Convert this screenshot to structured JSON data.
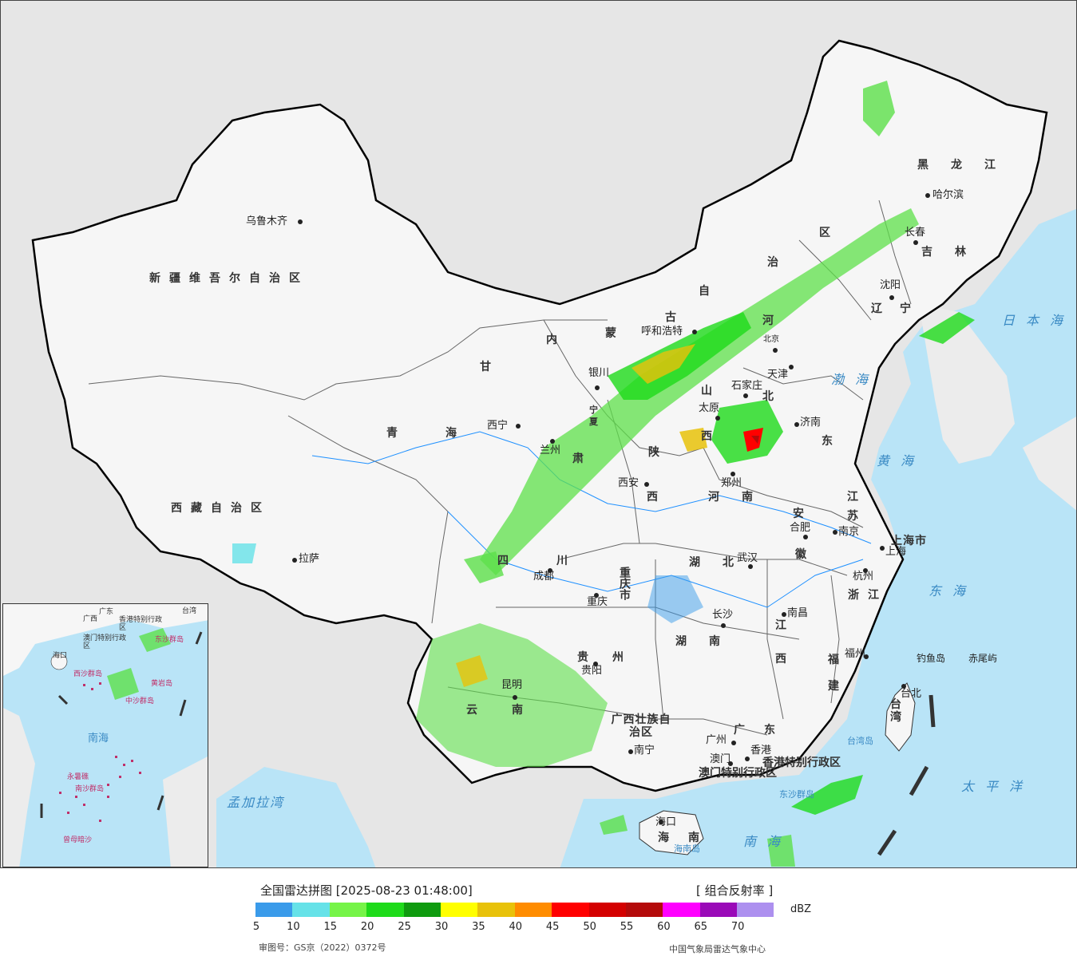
{
  "title": "全国雷达拼图 [2025-08-23 01:48:00]",
  "product": "[ 组合反射率 ]",
  "legend": {
    "unit": "dBZ",
    "colors": [
      "#3a9bea",
      "#66e2e8",
      "#76f448",
      "#1edb1a",
      "#0f9b0f",
      "#ffff00",
      "#e8c20a",
      "#ff8c00",
      "#ff0000",
      "#d40000",
      "#b40a0a",
      "#ff00ff",
      "#9a0ab8",
      "#ad90ef"
    ],
    "ticks": [
      "5",
      "10",
      "15",
      "20",
      "25",
      "30",
      "35",
      "40",
      "45",
      "50",
      "55",
      "60",
      "65",
      "70"
    ]
  },
  "review_number": "审图号：GS京（2022）0372号",
  "credit": "中国气象局雷达气象中心",
  "cities": [
    "乌鲁木齐",
    "哈尔滨",
    "长春",
    "沈阳",
    "呼和浩特",
    "北京",
    "天津",
    "石家庄",
    "太原",
    "济南",
    "银川",
    "西宁",
    "兰州",
    "西安",
    "郑州",
    "合肥",
    "南京",
    "上海",
    "杭州",
    "武汉",
    "成都",
    "重庆",
    "长沙",
    "南昌",
    "福州",
    "贵阳",
    "昆明",
    "南宁",
    "广州",
    "香港",
    "澳门",
    "海口",
    "拉萨",
    "台北",
    "钓鱼岛",
    "赤尾屿"
  ],
  "provinces": [
    "新疆维吾尔自治区",
    "西藏自治区",
    "青海",
    "甘",
    "肃",
    "内",
    "蒙",
    "古",
    "自",
    "治",
    "区",
    "黑龙江",
    "吉林",
    "辽宁",
    "河",
    "北",
    "山",
    "西",
    "东",
    "陕",
    "西",
    "河南",
    "江",
    "苏",
    "安",
    "徽",
    "上海市",
    "浙江",
    "湖北",
    "湖南",
    "江",
    "西",
    "福",
    "建",
    "四",
    "川",
    "重庆市",
    "贵州",
    "云",
    "南",
    "广西壮族自治区",
    "广东",
    "香港特别行政区",
    "澳门特别行政区",
    "海南",
    "台湾",
    "宁",
    "夏"
  ],
  "seas": [
    "日本海",
    "渤海",
    "黄海",
    "东海",
    "南海",
    "太平洋",
    "台湾岛",
    "海南岛",
    "东沙群岛",
    "孟加拉湾"
  ],
  "inset": {
    "labels": [
      "南海",
      "西沙群岛",
      "中沙群岛",
      "南沙群岛",
      "海口",
      "广东",
      "广西",
      "台湾",
      "香港特别行政区",
      "澳门特别行政区",
      "东沙群岛",
      "永暑礁",
      "曾母暗沙",
      "黄岩岛"
    ]
  }
}
